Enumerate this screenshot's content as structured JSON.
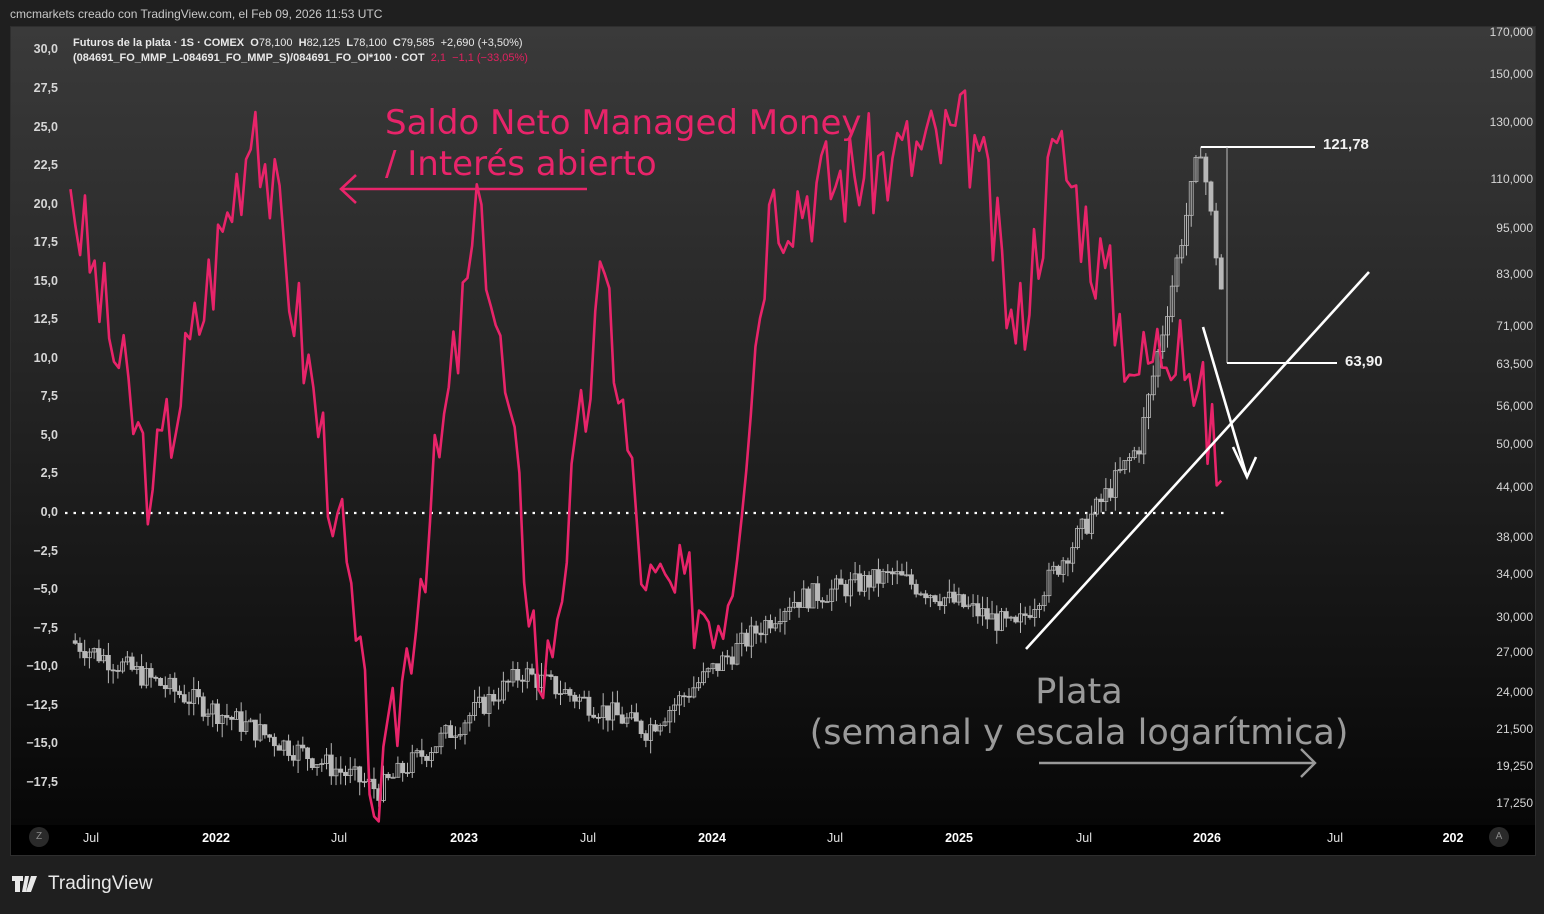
{
  "attribution": "cmcmarkets creado con TradingView.com, el Feb 09, 2026 11:53 UTC",
  "legend": {
    "main": {
      "title": "Futuros de la plata · 1S · COMEX",
      "o_label": "O",
      "o": "78,100",
      "h_label": "H",
      "h": "82,125",
      "l_label": "L",
      "l": "78,100",
      "c_label": "C",
      "c": "79,585",
      "change": "+2,690 (+3,50%)"
    },
    "indicator": {
      "formula": "(084691_FO_MMP_L-084691_FO_MMP_S)/084691_FO_OI*100 · COT",
      "value": "2,1",
      "change": "−1,1 (−33,05%)"
    }
  },
  "annotations": {
    "pink_line1": "Saldo Neto Managed Money",
    "pink_line2": "/ Interés abierto",
    "grey_line1": "Plata",
    "grey_line2": "(semanal y escala logarítmica)",
    "high_label": "121,78",
    "low_label": "63,90"
  },
  "colors": {
    "indicator": "#e8246a",
    "candles": "#b8b8b8",
    "trendline": "#ffffff",
    "zero_line": "#ffffff"
  },
  "buttons": {
    "left_circle": "Z",
    "right_circle": "A"
  },
  "footer": {
    "brand": "TradingView"
  },
  "chart_data": [
    {
      "type": "line",
      "title": "(084691_FO_MMP_L-084691_FO_MMP_S)/084691_FO_OI*100 · COT",
      "ylabel": "Saldo Neto Managed Money / Interés abierto",
      "ylim": [
        -20,
        30
      ],
      "y_ticks": [
        "30,0",
        "27,5",
        "25,0",
        "22,5",
        "20,0",
        "17,5",
        "15,0",
        "12,5",
        "10,0",
        "7,5",
        "5,0",
        "2,5",
        "0,0",
        "-2,5",
        "-5,0",
        "-7,5",
        "-10,0",
        "-12,5",
        "-15,0",
        "-17,5"
      ],
      "x_ticks": [
        "Jul",
        "2022",
        "Jul",
        "2023",
        "Jul",
        "2024",
        "Jul",
        "2025",
        "Jul",
        "2026",
        "Jul",
        "202"
      ],
      "reference_line": 0,
      "approx_key_points": [
        {
          "date": "2021-06",
          "value": 21
        },
        {
          "date": "2021-10",
          "value": 1.5
        },
        {
          "date": "2022-03",
          "value": 26
        },
        {
          "date": "2022-07",
          "value": 0
        },
        {
          "date": "2022-09",
          "value": -20
        },
        {
          "date": "2023-02",
          "value": 20
        },
        {
          "date": "2023-05",
          "value": -12
        },
        {
          "date": "2023-08",
          "value": 15.5
        },
        {
          "date": "2023-10",
          "value": -5
        },
        {
          "date": "2024-02",
          "value": -6
        },
        {
          "date": "2024-04",
          "value": 20
        },
        {
          "date": "2024-10",
          "value": 23
        },
        {
          "date": "2025-02",
          "value": 24.5
        },
        {
          "date": "2025-04",
          "value": 11
        },
        {
          "date": "2025-06",
          "value": 24
        },
        {
          "date": "2025-10",
          "value": 9
        },
        {
          "date": "2025-12",
          "value": 12.5
        },
        {
          "date": "2026-02",
          "value": 2.1
        }
      ]
    },
    {
      "type": "candlestick",
      "title": "Futuros de la plata · 1S · COMEX",
      "scale": "log",
      "ylim": [
        16500,
        172000
      ],
      "y_ticks": [
        "170,000",
        "150,000",
        "130,000",
        "110,000",
        "95,000",
        "83,000",
        "71,000",
        "63,500",
        "56,000",
        "50,000",
        "44,000",
        "38,000",
        "34,000",
        "30,000",
        "27,000",
        "24,000",
        "21,500",
        "19,250",
        "17,250"
      ],
      "approx_key_points": [
        {
          "date": "2021-06",
          "close": 28000
        },
        {
          "date": "2022-09",
          "close": 18000
        },
        {
          "date": "2023-04",
          "close": 25500
        },
        {
          "date": "2023-10",
          "close": 21500
        },
        {
          "date": "2024-05",
          "close": 31500
        },
        {
          "date": "2024-10",
          "close": 34000
        },
        {
          "date": "2025-04",
          "close": 29000
        },
        {
          "date": "2025-10",
          "close": 50000
        },
        {
          "date": "2026-01",
          "close": 121780
        },
        {
          "date": "2026-02",
          "close": 79585
        }
      ],
      "annotations": {
        "high": "121,78",
        "low": "63,90"
      }
    }
  ]
}
